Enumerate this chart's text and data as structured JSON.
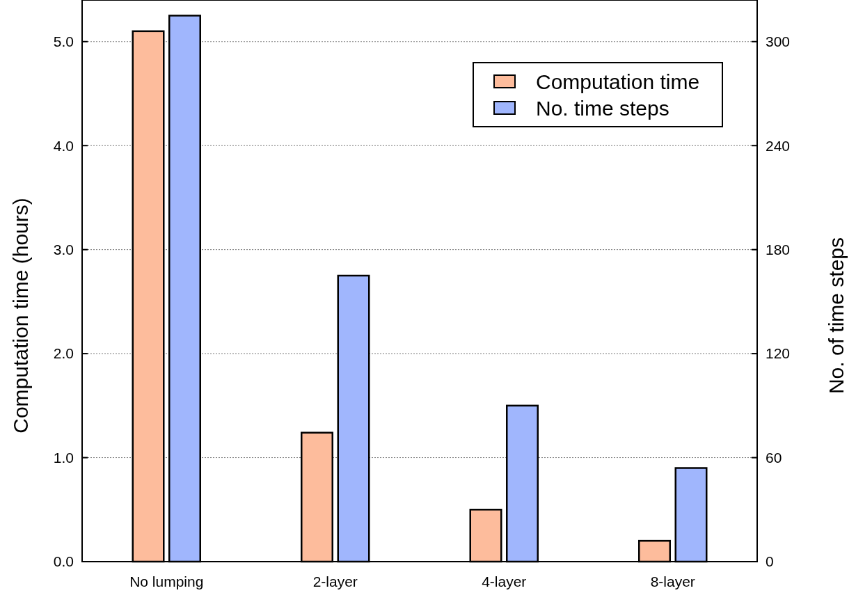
{
  "chart_data": {
    "type": "bar",
    "categories": [
      "No lumping",
      "2-layer",
      "4-layer",
      "8-layer"
    ],
    "ylabel": "Computation time (hours)",
    "y2label": "No. of time steps",
    "series": [
      {
        "name": "Computation time",
        "color": "#fdbc9c",
        "values": [
          5.1,
          1.24,
          0.5,
          0.2
        ]
      },
      {
        "name": "No. time steps",
        "color": "#a0b6fd",
        "values": [
          315,
          165,
          90,
          54
        ],
        "axis": "y2"
      }
    ],
    "ylim": [
      0,
      5.4
    ],
    "yticks": [
      {
        "value": 0,
        "label": "0.0"
      },
      {
        "value": 1,
        "label": "1.0"
      },
      {
        "value": 2,
        "label": "2.0"
      },
      {
        "value": 3,
        "label": "3.0"
      },
      {
        "value": 4,
        "label": "4.0"
      },
      {
        "value": 5,
        "label": "5.0"
      }
    ],
    "y2lim": [
      0,
      324
    ],
    "y2ticks": [
      0,
      60,
      120,
      180,
      240,
      300
    ],
    "grid": "y",
    "legend": "top right"
  }
}
